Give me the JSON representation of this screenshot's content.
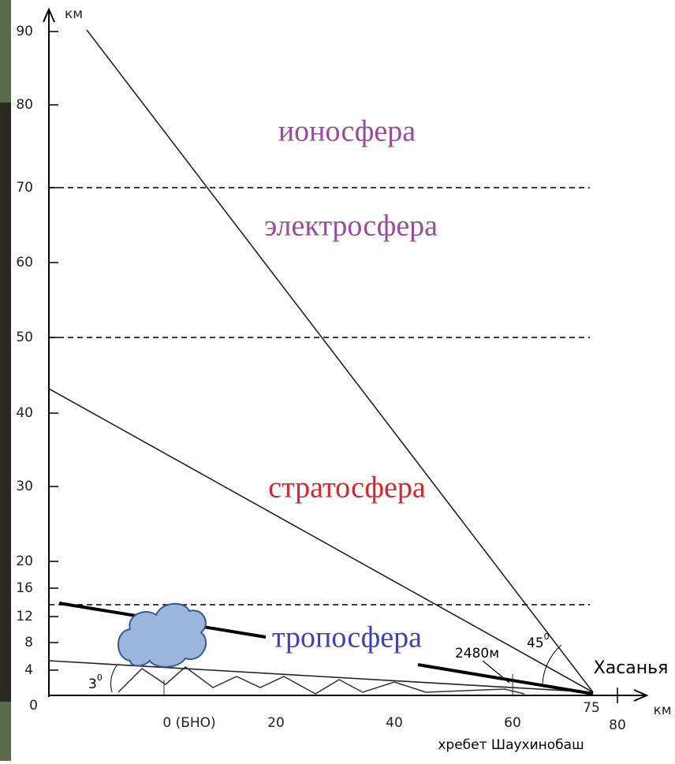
{
  "y_axis": {
    "unit": "км",
    "ticks": [
      90,
      80,
      70,
      60,
      50,
      40,
      30,
      20,
      16,
      12,
      8,
      4,
      0
    ]
  },
  "x_axis": {
    "unit": "км",
    "ticks": [
      "0 (БНО)",
      20,
      40,
      60,
      75,
      80
    ]
  },
  "layers": [
    "ионосфера",
    "электросфера",
    "стратосфера",
    "тропосфера"
  ],
  "annotations": {
    "height": "2480м",
    "angle_45": "45",
    "angle_45_sup": "0",
    "angle_3": "3",
    "angle_3_sup": "0",
    "place": "Хасанья",
    "ridge": "хребет Шаухинобаш"
  }
}
